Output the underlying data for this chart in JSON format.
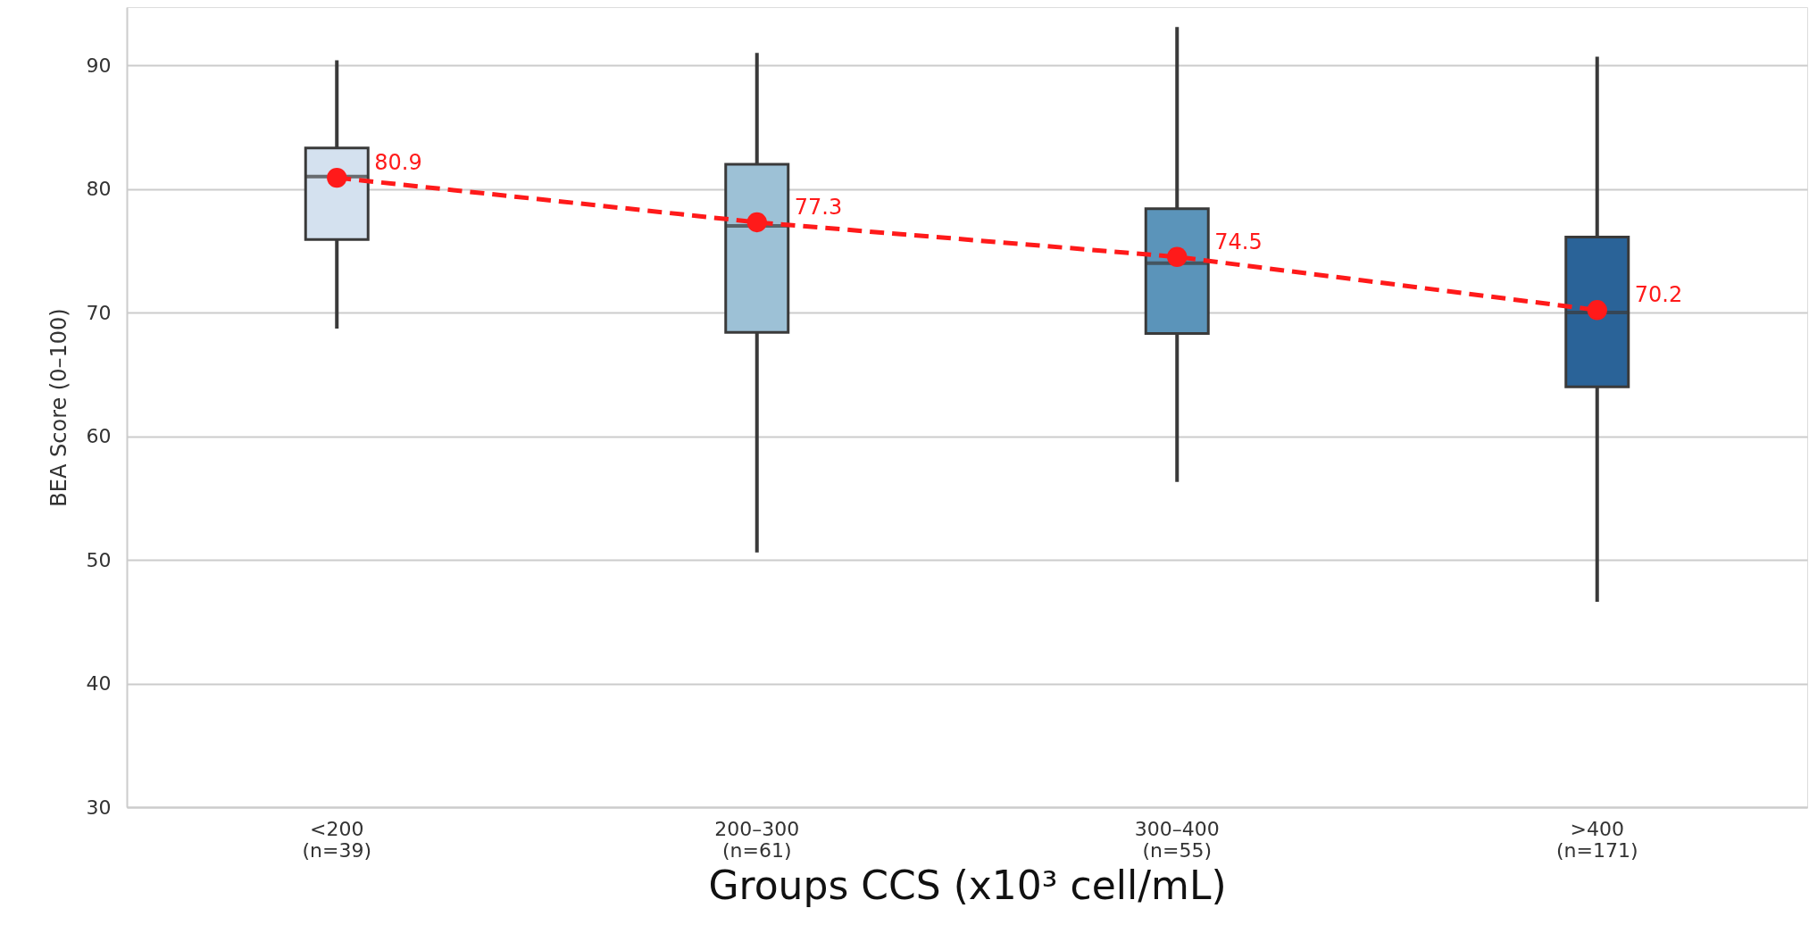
{
  "chart_data": {
    "type": "box",
    "xlabel": "Groups CCS (x10³ cell/mL)",
    "ylabel": "BEA Score (0–100)",
    "categories": [
      "<200\n(n=39)",
      "200–300\n(n=61)",
      "300–400\n(n=55)",
      ">400\n(n=171)"
    ],
    "colors": [
      "#d4e1ef",
      "#9dc1d6",
      "#5b94ba",
      "#2a6398"
    ],
    "boxes": [
      {
        "low": 68.7,
        "q1": 75.9,
        "median": 81,
        "q3": 83.3,
        "high": 90.4
      },
      {
        "low": 50.6,
        "q1": 68.4,
        "median": 77,
        "q3": 82.0,
        "high": 91.0
      },
      {
        "low": 56.3,
        "q1": 68.3,
        "median": 74,
        "q3": 78.4,
        "high": 93.1
      },
      {
        "low": 46.6,
        "q1": 64.0,
        "median": 70,
        "q3": 76.1,
        "high": 90.7
      }
    ],
    "series": [
      {
        "type": "line",
        "color": "#ff1a1a",
        "values": [
          80.9,
          77.3,
          74.5,
          70.2
        ],
        "marker": "circle",
        "line_style": "dashed",
        "data_labels": true
      }
    ],
    "ylim": [
      30,
      94.7
    ],
    "yticks": [
      30,
      40,
      50,
      60,
      70,
      80,
      90
    ],
    "grid": "y"
  }
}
